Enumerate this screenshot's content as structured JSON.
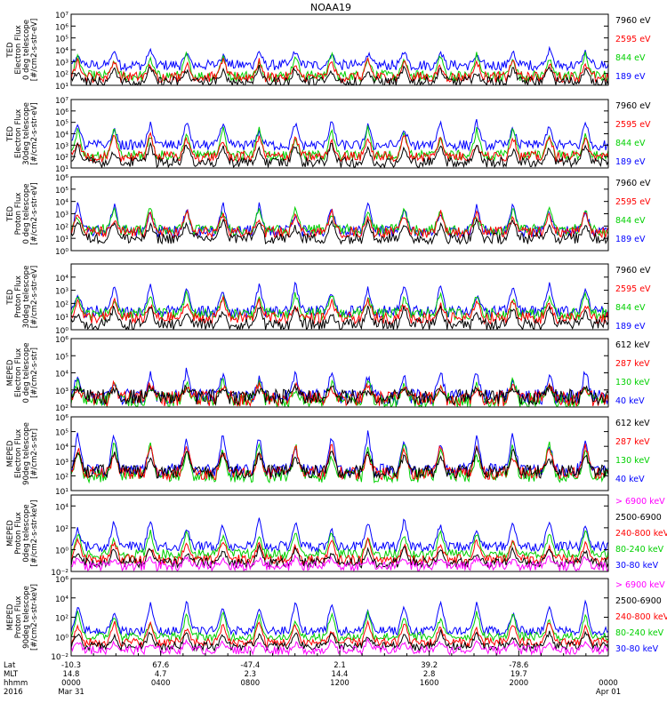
{
  "chart_data": {
    "type": "line",
    "title": "NOAA19",
    "colors": {
      "black": "#000000",
      "blue": "#0000ff",
      "red": "#ff0000",
      "green": "#00d000",
      "magenta": "#ff00ff"
    },
    "x_axis": {
      "row_labels": [
        "Lat",
        "MLT",
        "hhmm",
        "2016"
      ],
      "columns": [
        {
          "lat": "-10.3",
          "mlt": "14.8",
          "hhmm": "0000",
          "date": "Mar 31"
        },
        {
          "lat": "67.6",
          "mlt": "4.7",
          "hhmm": "0400",
          "date": ""
        },
        {
          "lat": "-47.4",
          "mlt": "2.3",
          "hhmm": "0800",
          "date": ""
        },
        {
          "lat": "2.1",
          "mlt": "14.4",
          "hhmm": "1200",
          "date": ""
        },
        {
          "lat": "39.2",
          "mlt": "2.8",
          "hhmm": "1600",
          "date": ""
        },
        {
          "lat": "-78.6",
          "mlt": "19.7",
          "hhmm": "2000",
          "date": ""
        },
        {
          "lat": "",
          "mlt": "",
          "hhmm": "0000",
          "date": "Apr 01"
        }
      ],
      "xlim_hours": [
        0,
        24
      ]
    },
    "panels": [
      {
        "ylabel": [
          "TED",
          "Electron Flux",
          "0 deg telescope",
          "[#/cm2-s-str-eV]"
        ],
        "ylim_exp": [
          1,
          7
        ],
        "tick_labels": [
          "10¹",
          "10²",
          "10³",
          "10⁴",
          "10⁵",
          "10⁶",
          "10⁷"
        ],
        "legend": [
          {
            "label": "7960 eV",
            "color": "#000000"
          },
          {
            "label": "2595 eV",
            "color": "#ff0000"
          },
          {
            "label": "844 eV",
            "color": "#00d000"
          },
          {
            "label": "189 eV",
            "color": "#0000ff"
          }
        ],
        "series": [
          {
            "name": "189 eV",
            "color": "#0000ff",
            "base_exp": 2.7,
            "peak_exp": 4.0
          },
          {
            "name": "844 eV",
            "color": "#00d000",
            "base_exp": 1.8,
            "peak_exp": 3.7
          },
          {
            "name": "2595 eV",
            "color": "#ff0000",
            "base_exp": 1.7,
            "peak_exp": 3.2
          },
          {
            "name": "7960 eV",
            "color": "#000000",
            "base_exp": 1.3,
            "peak_exp": 2.6
          }
        ]
      },
      {
        "ylabel": [
          "TED",
          "Electron Flux",
          "30deg telescope",
          "[#/cm2-s-str-eV]"
        ],
        "ylim_exp": [
          1,
          7
        ],
        "tick_labels": [
          "10¹",
          "10²",
          "10³",
          "10⁴",
          "10⁵",
          "10⁶",
          "10⁷"
        ],
        "legend": [
          {
            "label": "7960 eV",
            "color": "#000000"
          },
          {
            "label": "2595 eV",
            "color": "#ff0000"
          },
          {
            "label": "844 eV",
            "color": "#00d000"
          },
          {
            "label": "189 eV",
            "color": "#0000ff"
          }
        ],
        "series": [
          {
            "name": "189 eV",
            "color": "#0000ff",
            "base_exp": 3.0,
            "peak_exp": 5.2
          },
          {
            "name": "844 eV",
            "color": "#00d000",
            "base_exp": 2.1,
            "peak_exp": 4.6
          },
          {
            "name": "2595 eV",
            "color": "#ff0000",
            "base_exp": 2.0,
            "peak_exp": 4.0
          },
          {
            "name": "7960 eV",
            "color": "#000000",
            "base_exp": 1.5,
            "peak_exp": 3.2
          }
        ]
      },
      {
        "ylabel": [
          "TED",
          "Proton Flux",
          "0 deg telescope",
          "[#/cm2-s-str-eV]"
        ],
        "ylim_exp": [
          0,
          6
        ],
        "tick_labels": [
          "10⁰",
          "10¹",
          "10²",
          "10³",
          "10⁴",
          "10⁵",
          "10⁶"
        ],
        "legend": [
          {
            "label": "7960 eV",
            "color": "#000000"
          },
          {
            "label": "2595 eV",
            "color": "#ff0000"
          },
          {
            "label": "844 eV",
            "color": "#00d000"
          },
          {
            "label": "189 eV",
            "color": "#0000ff"
          }
        ],
        "series": [
          {
            "name": "189 eV",
            "color": "#0000ff",
            "base_exp": 1.6,
            "peak_exp": 3.9
          },
          {
            "name": "844 eV",
            "color": "#00d000",
            "base_exp": 1.7,
            "peak_exp": 3.6
          },
          {
            "name": "2595 eV",
            "color": "#ff0000",
            "base_exp": 1.5,
            "peak_exp": 3.3
          },
          {
            "name": "7960 eV",
            "color": "#000000",
            "base_exp": 1.0,
            "peak_exp": 2.6
          }
        ]
      },
      {
        "ylabel": [
          "TED",
          "Proton Flux",
          "30deg telescope",
          "[#/cm2-s-str-eV]"
        ],
        "ylim_exp": [
          0,
          5
        ],
        "tick_labels": [
          "10⁰",
          "10¹",
          "10²",
          "10³",
          "10⁴",
          ""
        ],
        "legend": [
          {
            "label": "7960 eV",
            "color": "#000000"
          },
          {
            "label": "2595 eV",
            "color": "#ff0000"
          },
          {
            "label": "844 eV",
            "color": "#00d000"
          },
          {
            "label": "189 eV",
            "color": "#0000ff"
          }
        ],
        "series": [
          {
            "name": "189 eV",
            "color": "#0000ff",
            "base_exp": 1.4,
            "peak_exp": 3.6
          },
          {
            "name": "844 eV",
            "color": "#00d000",
            "base_exp": 1.2,
            "peak_exp": 2.8
          },
          {
            "name": "2595 eV",
            "color": "#ff0000",
            "base_exp": 0.9,
            "peak_exp": 2.4
          },
          {
            "name": "7960 eV",
            "color": "#000000",
            "base_exp": 0.4,
            "peak_exp": 1.8
          }
        ]
      },
      {
        "ylabel": [
          "MEPED",
          "Electron Flux",
          "0 deg telescope",
          "[#/cm2-s-str]"
        ],
        "ylim_exp": [
          2,
          6
        ],
        "tick_labels": [
          "10²",
          "10³",
          "10⁴",
          "10⁵",
          "10⁶"
        ],
        "legend": [
          {
            "label": "612 keV",
            "color": "#000000"
          },
          {
            "label": "287 keV",
            "color": "#ff0000"
          },
          {
            "label": "130 keV",
            "color": "#00d000"
          },
          {
            "label": "40 keV",
            "color": "#0000ff"
          }
        ],
        "series": [
          {
            "name": "40 keV",
            "color": "#0000ff",
            "base_exp": 2.6,
            "peak_exp": 4.2
          },
          {
            "name": "130 keV",
            "color": "#00d000",
            "base_exp": 2.4,
            "peak_exp": 3.6
          },
          {
            "name": "287 keV",
            "color": "#ff0000",
            "base_exp": 2.5,
            "peak_exp": 3.4
          },
          {
            "name": "612 keV",
            "color": "#000000",
            "base_exp": 2.6,
            "peak_exp": 3.2
          }
        ]
      },
      {
        "ylabel": [
          "MEPED",
          "Electron Flux",
          "90deg telescope",
          "[#/cm2-s-str]"
        ],
        "ylim_exp": [
          1,
          6
        ],
        "tick_labels": [
          "10¹",
          "10²",
          "10³",
          "10⁴",
          "10⁵",
          "10⁶"
        ],
        "legend": [
          {
            "label": "612 keV",
            "color": "#000000"
          },
          {
            "label": "287 keV",
            "color": "#ff0000"
          },
          {
            "label": "130 keV",
            "color": "#00d000"
          },
          {
            "label": "40 keV",
            "color": "#0000ff"
          }
        ],
        "series": [
          {
            "name": "40 keV",
            "color": "#0000ff",
            "base_exp": 2.4,
            "peak_exp": 5.0
          },
          {
            "name": "130 keV",
            "color": "#00d000",
            "base_exp": 2.0,
            "peak_exp": 4.4
          },
          {
            "name": "287 keV",
            "color": "#ff0000",
            "base_exp": 2.2,
            "peak_exp": 4.2
          },
          {
            "name": "612 keV",
            "color": "#000000",
            "base_exp": 2.3,
            "peak_exp": 3.8
          }
        ]
      },
      {
        "ylabel": [
          "MEPED",
          "Proton Flux",
          "0deg telescope",
          "[#/cm2-s-str-keV]"
        ],
        "ylim_exp": [
          -2,
          5
        ],
        "tick_labels": [
          "10⁻²",
          "10⁰",
          "10²",
          "10⁴"
        ],
        "tick_exps": [
          -2,
          0,
          2,
          4
        ],
        "legend": [
          {
            "label": "> 6900 keV",
            "color": "#ff00ff"
          },
          {
            "label": "2500-6900",
            "color": "#000000"
          },
          {
            "label": "240-800 keV",
            "color": "#ff0000"
          },
          {
            "label": "80-240 keV",
            "color": "#00d000"
          },
          {
            "label": "30-80 keV",
            "color": "#0000ff"
          }
        ],
        "series": [
          {
            "name": "30-80 keV",
            "color": "#0000ff",
            "base_exp": 0.3,
            "peak_exp": 2.8
          },
          {
            "name": "80-240 keV",
            "color": "#00d000",
            "base_exp": -0.4,
            "peak_exp": 1.8
          },
          {
            "name": "240-800 keV",
            "color": "#ff0000",
            "base_exp": -0.9,
            "peak_exp": 1.0
          },
          {
            "name": "2500-6900",
            "color": "#000000",
            "base_exp": -1.2,
            "peak_exp": 0.2
          },
          {
            "name": "> 6900 keV",
            "color": "#ff00ff",
            "base_exp": -1.5,
            "peak_exp": -0.6
          }
        ]
      },
      {
        "ylabel": [
          "MEPED",
          "Proton Flux",
          "90deg telescope",
          "[#/cm2-s-str-keV]"
        ],
        "ylim_exp": [
          -2,
          6
        ],
        "tick_labels": [
          "10⁻²",
          "10⁰",
          "10²",
          "10⁴",
          "10⁶"
        ],
        "tick_exps": [
          -2,
          0,
          2,
          4,
          6
        ],
        "legend": [
          {
            "label": "> 6900 keV",
            "color": "#ff00ff"
          },
          {
            "label": "2500-6900",
            "color": "#000000"
          },
          {
            "label": "240-800 keV",
            "color": "#ff0000"
          },
          {
            "label": "80-240 keV",
            "color": "#00d000"
          },
          {
            "label": "30-80 keV",
            "color": "#0000ff"
          }
        ],
        "series": [
          {
            "name": "30-80 keV",
            "color": "#0000ff",
            "base_exp": 0.6,
            "peak_exp": 3.8
          },
          {
            "name": "80-240 keV",
            "color": "#00d000",
            "base_exp": 0.0,
            "peak_exp": 2.6
          },
          {
            "name": "240-800 keV",
            "color": "#ff0000",
            "base_exp": -0.6,
            "peak_exp": 1.6
          },
          {
            "name": "2500-6900",
            "color": "#000000",
            "base_exp": -1.0,
            "peak_exp": 0.6
          },
          {
            "name": "> 6900 keV",
            "color": "#ff00ff",
            "base_exp": -1.4,
            "peak_exp": -0.4
          }
        ]
      }
    ]
  }
}
